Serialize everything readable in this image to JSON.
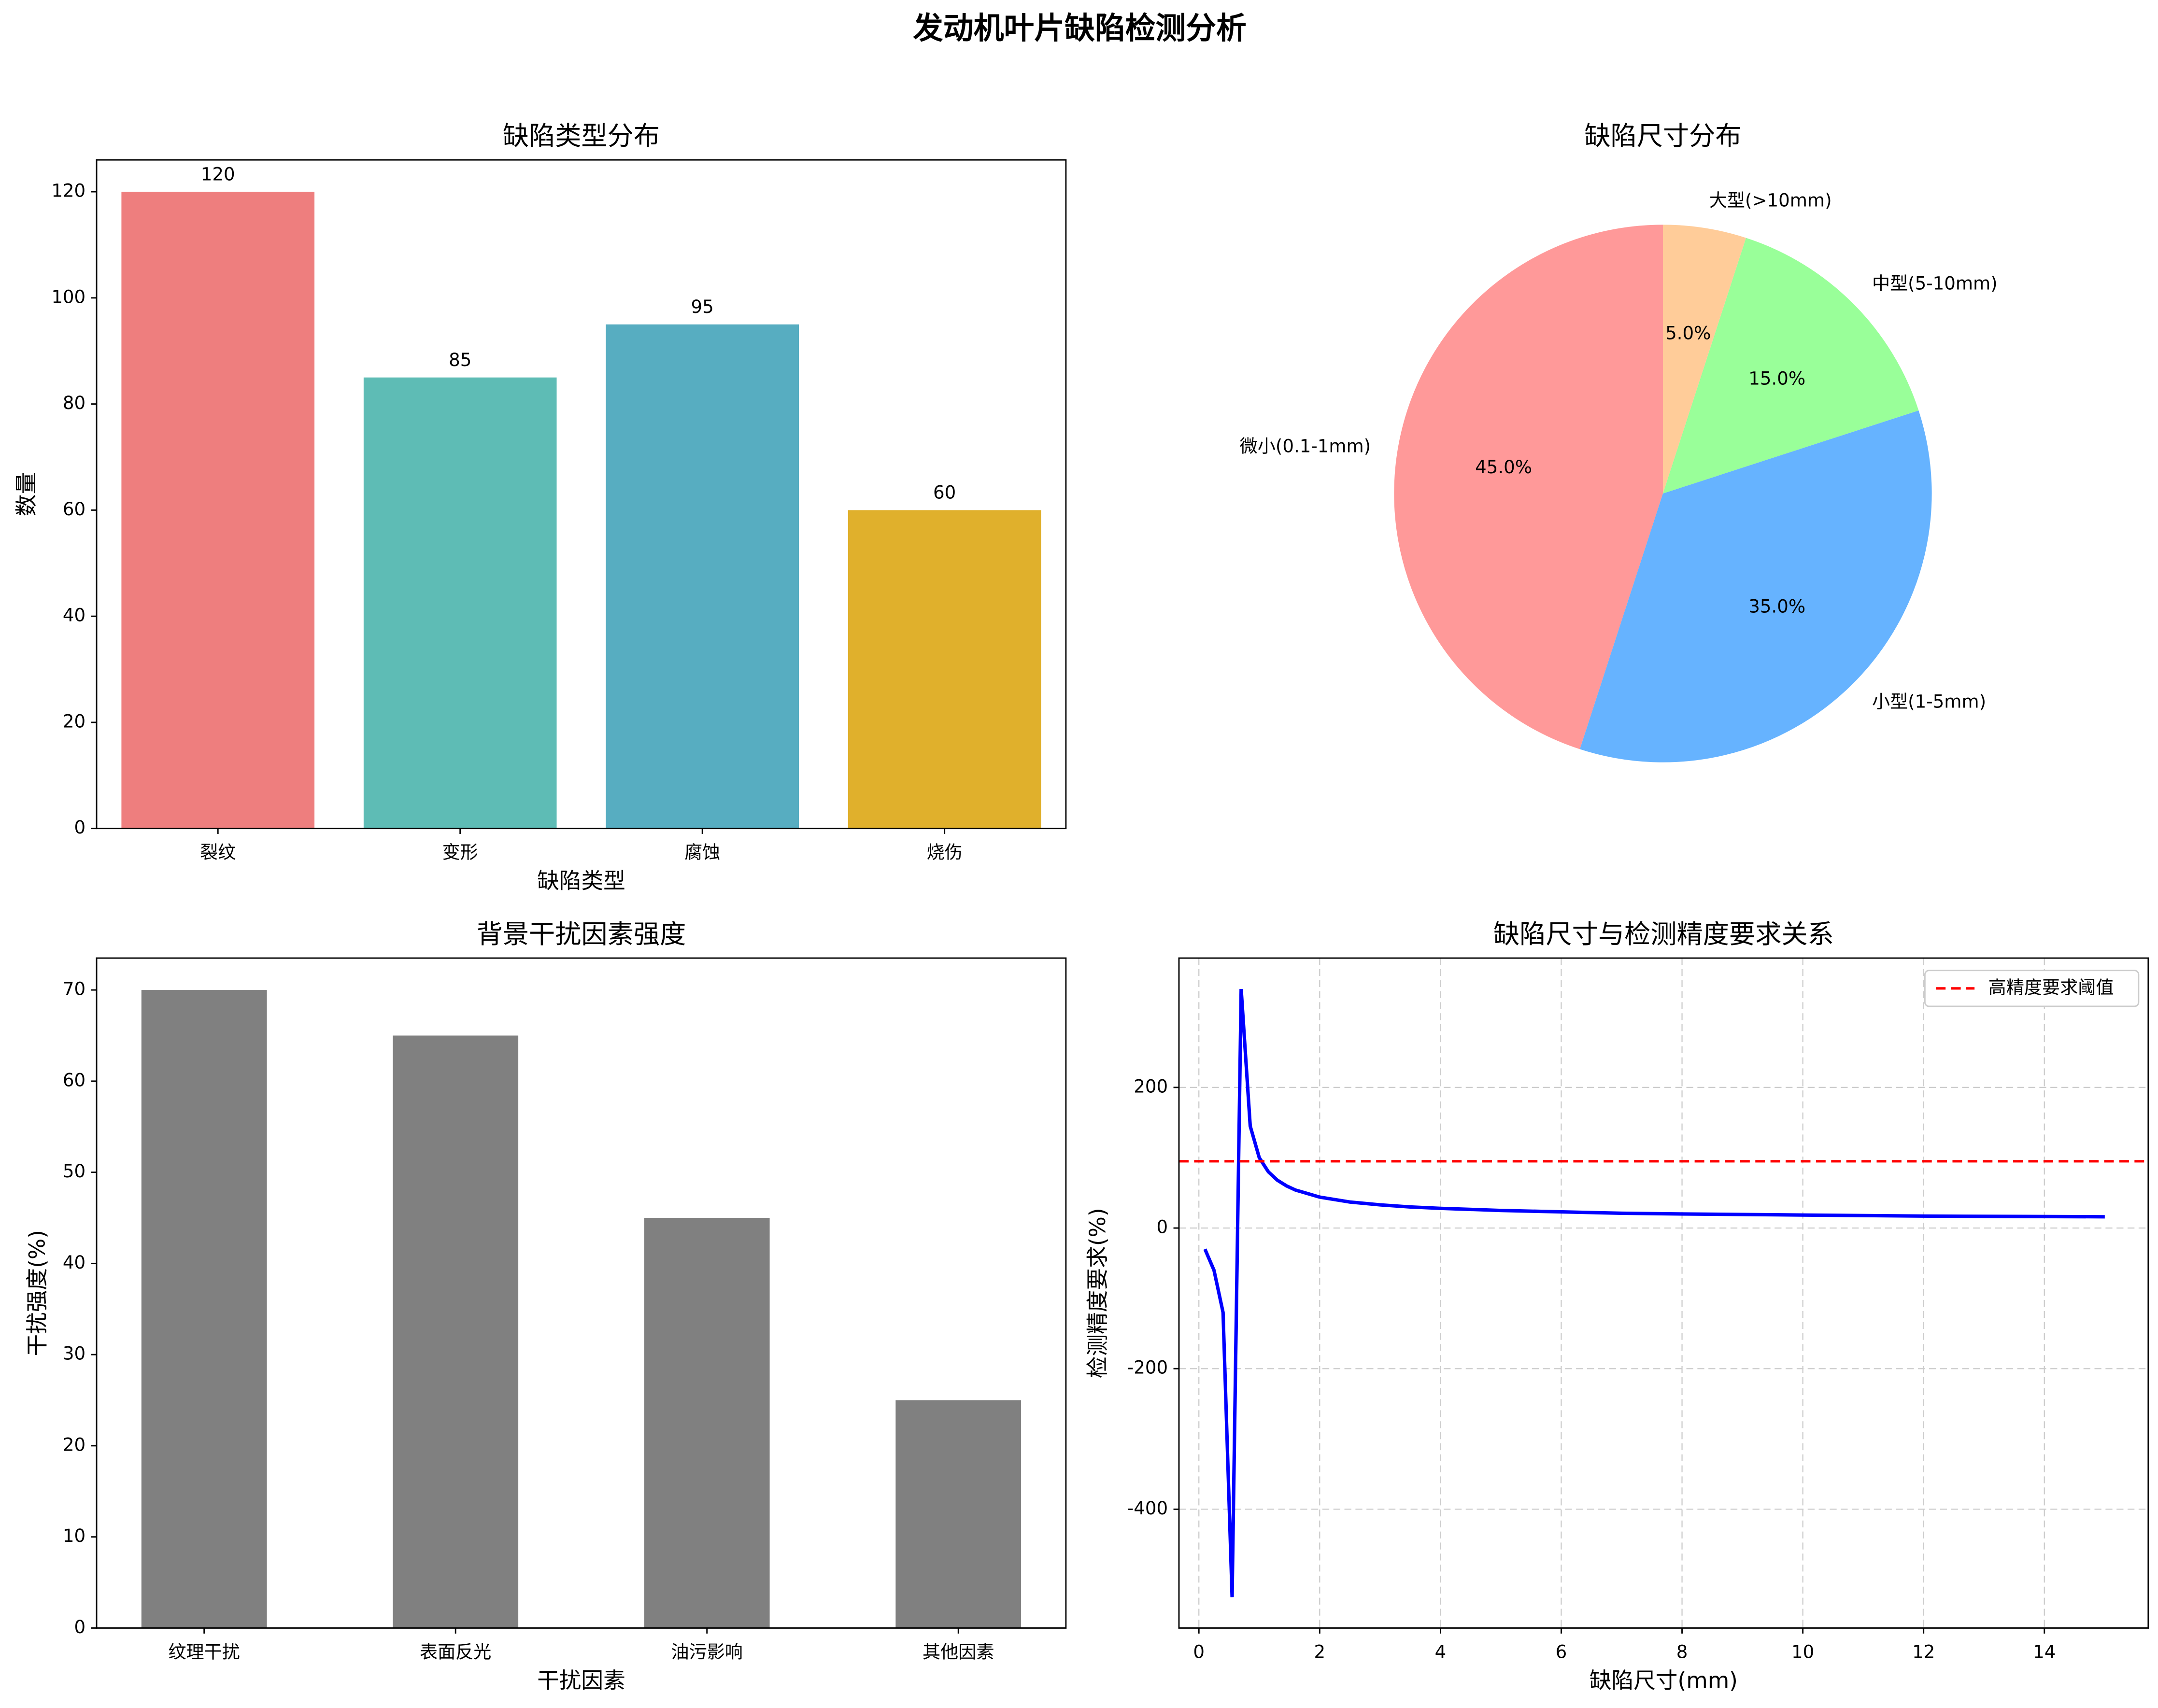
{
  "title": "发动机叶片缺陷检测分析",
  "chart_data": [
    {
      "type": "bar",
      "title": "缺陷类型分布",
      "xlabel": "缺陷类型",
      "ylabel": "数量",
      "categories": [
        "裂纹",
        "变形",
        "腐蚀",
        "烧伤"
      ],
      "values": [
        120,
        85,
        95,
        60
      ],
      "colors": [
        "#ee7e7e",
        "#5ebcb5",
        "#57adc1",
        "#e0b02c"
      ],
      "ylim": [
        0,
        126
      ],
      "yticks": [
        0,
        20,
        40,
        60,
        80,
        100,
        120
      ],
      "value_labels_shown": true
    },
    {
      "type": "pie",
      "title": "缺陷尺寸分布",
      "categories": [
        "微小(0.1-1mm)",
        "小型(1-5mm)",
        "中型(5-10mm)",
        "大型(>10mm)"
      ],
      "values": [
        45,
        35,
        15,
        5
      ],
      "value_labels": [
        "45.0%",
        "35.0%",
        "15.0%",
        "5.0%"
      ],
      "colors": [
        "#ff9999",
        "#66b3ff",
        "#99ff99",
        "#ffcc99"
      ],
      "start_angle": 90
    },
    {
      "type": "bar",
      "title": "背景干扰因素强度",
      "xlabel": "干扰因素",
      "ylabel": "干扰强度(%)",
      "categories": [
        "纹理干扰",
        "表面反光",
        "油污影响",
        "其他因素"
      ],
      "values": [
        70,
        65,
        45,
        25
      ],
      "colors": [
        "#808080",
        "#808080",
        "#808080",
        "#808080"
      ],
      "ylim": [
        0,
        73.5
      ],
      "yticks": [
        0,
        10,
        20,
        30,
        40,
        50,
        60,
        70
      ],
      "value_labels_shown": false
    },
    {
      "type": "line",
      "title": "缺陷尺寸与检测精度要求关系",
      "xlabel": "缺陷尺寸(mm)",
      "ylabel": "检测精度要求(%)",
      "x": [
        0.1,
        0.25,
        0.4,
        0.55,
        0.7,
        0.85,
        1.0,
        1.15,
        1.3,
        1.45,
        1.6,
        1.8,
        2.0,
        2.5,
        3,
        3.5,
        4,
        5,
        6,
        7,
        8,
        10,
        12,
        15
      ],
      "series": [
        {
          "color": "#0000ff",
          "values": [
            -30,
            -60,
            -120,
            -525,
            340,
            145,
            100,
            80,
            68,
            60,
            54,
            49,
            44,
            37,
            33,
            30,
            28,
            25,
            23,
            21,
            20,
            18.5,
            17,
            16
          ]
        }
      ],
      "threshold": {
        "name": "高精度要求阈值",
        "value": 95,
        "color": "#ff0000"
      },
      "xlim": [
        -0.33,
        15.72
      ],
      "ylim": [
        -569,
        384
      ],
      "xticks": [
        0,
        2,
        4,
        6,
        8,
        10,
        12,
        14
      ],
      "yticks": [
        -400,
        -200,
        0,
        200
      ],
      "grid": true,
      "legend": "upper right"
    }
  ]
}
